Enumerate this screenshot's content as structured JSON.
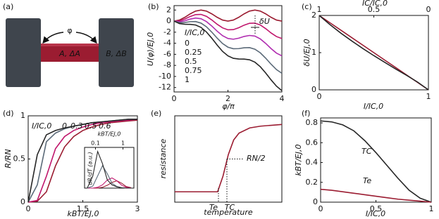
{
  "chart_data": [
    {
      "type": "diagram",
      "panel": "(a)",
      "labels": [
        "φ",
        "A, ΔA",
        "B, ΔB"
      ]
    },
    {
      "type": "line",
      "panel": "(b)",
      "xlabel": "φ/π",
      "ylabel": "U(φ)/EJ,0",
      "legend_title": "I/IC,0",
      "annotation": "δU",
      "x": [
        0,
        0.2,
        0.4,
        0.6,
        0.8,
        1,
        1.2,
        1.4,
        1.6,
        1.8,
        2,
        2.2,
        2.4,
        2.6,
        2.8,
        3,
        3.2,
        3.4,
        3.6,
        3.8,
        4
      ],
      "xlim": [
        0,
        4
      ],
      "xticks": [
        0,
        2,
        4
      ],
      "ylim": [
        -12.8,
        2.8
      ],
      "yticks": [
        2,
        0,
        -2,
        -4,
        -6,
        -8,
        -10,
        -12
      ],
      "series": [
        {
          "name": "0",
          "color": "#9b1c31",
          "values": [
            0,
            0.19,
            0.69,
            1.31,
            1.81,
            2,
            1.81,
            1.31,
            0.69,
            0.19,
            0,
            0.19,
            0.69,
            1.31,
            1.81,
            2,
            1.81,
            1.31,
            0.69,
            0.19,
            0
          ]
        },
        {
          "name": "0.25",
          "color": "#c0166c",
          "values": [
            0,
            0.03,
            0.38,
            0.84,
            1.18,
            1.21,
            0.87,
            0.21,
            -0.57,
            -1.22,
            -1.57,
            -1.54,
            -1.19,
            -0.73,
            -0.39,
            -0.36,
            -0.7,
            -1.36,
            -2.14,
            -2.79,
            -3.14
          ]
        },
        {
          "name": "0.5",
          "color": "#b02db0",
          "values": [
            0,
            -0.12,
            0.06,
            0.37,
            0.55,
            0.43,
            -0.08,
            -0.89,
            -1.82,
            -2.64,
            -3.14,
            -3.27,
            -3.08,
            -2.77,
            -2.59,
            -2.71,
            -3.22,
            -4.03,
            -4.97,
            -5.78,
            -6.28
          ]
        },
        {
          "name": "0.75",
          "color": "#5b6a78",
          "values": [
            0,
            -0.28,
            -0.25,
            -0.1,
            -0.08,
            -0.36,
            -1.02,
            -1.99,
            -3.08,
            -4.05,
            -4.71,
            -4.99,
            -4.97,
            -4.82,
            -4.79,
            -5.07,
            -5.73,
            -6.7,
            -7.79,
            -8.76,
            -9.42
          ]
        },
        {
          "name": "1",
          "color": "#262626",
          "values": [
            0,
            -0.44,
            -0.57,
            -0.58,
            -0.7,
            -1.14,
            -1.96,
            -3.09,
            -4.34,
            -5.47,
            -6.28,
            -6.72,
            -6.85,
            -6.86,
            -6.99,
            -7.42,
            -8.24,
            -9.37,
            -10.62,
            -11.75,
            -12.57
          ]
        }
      ]
    },
    {
      "type": "line",
      "panel": "(c)",
      "xlabel": "I/IC,0",
      "ylabel": "δU/EJ,0",
      "x2label": "IC/IC,0",
      "x": [
        0,
        0.1,
        0.2,
        0.3,
        0.4,
        0.5,
        0.6,
        0.7,
        0.8,
        0.9,
        1
      ],
      "xlim": [
        0,
        1
      ],
      "xticks": [
        0,
        1
      ],
      "x2lim": [
        1,
        0
      ],
      "x2ticks": [
        1,
        0.5,
        0
      ],
      "ylim": [
        0,
        2
      ],
      "yticks": [
        0,
        1,
        2
      ],
      "series": [
        {
          "color": "#9b1c31",
          "values": [
            2,
            1.8,
            1.6,
            1.4,
            1.2,
            1,
            0.8,
            0.6,
            0.4,
            0.2,
            0
          ]
        },
        {
          "color": "#262626",
          "values": [
            2,
            1.75,
            1.52,
            1.31,
            1.11,
            0.92,
            0.74,
            0.56,
            0.39,
            0.21,
            0
          ]
        }
      ]
    },
    {
      "type": "line",
      "panel": "(d)",
      "xlabel": "kBT/EJ,0",
      "ylabel": "R/RN",
      "legend_title": "I/IC,0",
      "x": [
        0,
        0.25,
        0.5,
        0.75,
        1,
        1.25,
        1.5,
        1.75,
        2,
        2.25,
        2.5,
        2.75,
        3
      ],
      "xlim": [
        0,
        3
      ],
      "xticks": [
        0,
        1.5,
        3
      ],
      "ylim": [
        0,
        1
      ],
      "yticks": [
        0,
        0.5,
        1
      ],
      "series": [
        {
          "name": "0",
          "color": "#9b1c31",
          "values": [
            0,
            0.01,
            0.12,
            0.42,
            0.64,
            0.76,
            0.83,
            0.87,
            0.9,
            0.92,
            0.93,
            0.94,
            0.95
          ]
        },
        {
          "name": "0.3",
          "color": "#c0166c",
          "values": [
            0,
            0.02,
            0.3,
            0.62,
            0.76,
            0.83,
            0.87,
            0.9,
            0.92,
            0.93,
            0.94,
            0.95,
            0.96
          ]
        },
        {
          "name": "0.5",
          "color": "#5b6a78",
          "values": [
            0,
            0.2,
            0.7,
            0.8,
            0.85,
            0.88,
            0.9,
            0.92,
            0.93,
            0.94,
            0.95,
            0.96,
            0.96
          ]
        },
        {
          "name": "0.6",
          "color": "#262626",
          "values": [
            0,
            0.55,
            0.78,
            0.83,
            0.86,
            0.88,
            0.9,
            0.92,
            0.93,
            0.94,
            0.95,
            0.96,
            0.96
          ]
        }
      ]
    },
    {
      "type": "line",
      "xlabel": "kBT/EJ,0",
      "ylabel": "dR/dT (a.u.)",
      "xscale": "log",
      "xaxis": "top",
      "x": [
        0.05,
        0.08,
        0.12,
        0.18,
        0.27,
        0.4,
        0.6,
        0.9,
        1.3,
        2
      ],
      "xlim": [
        0.04,
        2.5
      ],
      "xticks": [
        0.1,
        1
      ],
      "ylim": [
        0,
        1
      ],
      "series": [
        {
          "color": "#9b1c31",
          "values": [
            0,
            0,
            0,
            0.02,
            0.07,
            0.14,
            0.18,
            0.12,
            0.04,
            0.01
          ]
        },
        {
          "color": "#c0166c",
          "values": [
            0,
            0,
            0.02,
            0.08,
            0.2,
            0.25,
            0.18,
            0.07,
            0.02,
            0
          ]
        },
        {
          "color": "#5b6a78",
          "values": [
            0,
            0.05,
            0.3,
            0.55,
            0.35,
            0.12,
            0.04,
            0.01,
            0,
            0
          ]
        },
        {
          "color": "#262626",
          "values": [
            0,
            0.3,
            0.9,
            0.6,
            0.2,
            0.08,
            0.03,
            0.01,
            0,
            0
          ]
        }
      ]
    },
    {
      "type": "line",
      "panel": "(e)",
      "xlabel": "temperature",
      "ylabel": "resistance",
      "annotations": [
        "RN/2",
        "Te",
        "TC"
      ],
      "x": [
        0,
        1,
        2,
        3,
        4,
        4.5,
        5,
        5.5,
        6,
        7,
        8,
        9,
        10
      ],
      "xlim": [
        0,
        10
      ],
      "ylim": [
        0,
        1
      ],
      "series": [
        {
          "color": "#9b1c31",
          "values": [
            0.12,
            0.12,
            0.12,
            0.12,
            0.12,
            0.3,
            0.55,
            0.72,
            0.8,
            0.86,
            0.88,
            0.89,
            0.9
          ]
        }
      ]
    },
    {
      "type": "line",
      "panel": "(f)",
      "xlabel": "I/IC,0",
      "ylabel": "kBT/EJ,0",
      "x": [
        0,
        0.1,
        0.2,
        0.3,
        0.4,
        0.5,
        0.6,
        0.7,
        0.8,
        0.9,
        1
      ],
      "xlim": [
        0,
        1
      ],
      "xticks": [
        0,
        0.5,
        1
      ],
      "ylim": [
        0,
        0.85
      ],
      "yticks": [
        0,
        0.2,
        0.4,
        0.6,
        0.8
      ],
      "series": [
        {
          "name": "TC",
          "color": "#262626",
          "values": [
            0.82,
            0.81,
            0.78,
            0.72,
            0.62,
            0.5,
            0.37,
            0.24,
            0.12,
            0.04,
            0
          ]
        },
        {
          "name": "Te",
          "color": "#9b1c31",
          "values": [
            0.13,
            0.12,
            0.105,
            0.09,
            0.075,
            0.06,
            0.045,
            0.03,
            0.02,
            0.01,
            0
          ]
        }
      ]
    }
  ]
}
